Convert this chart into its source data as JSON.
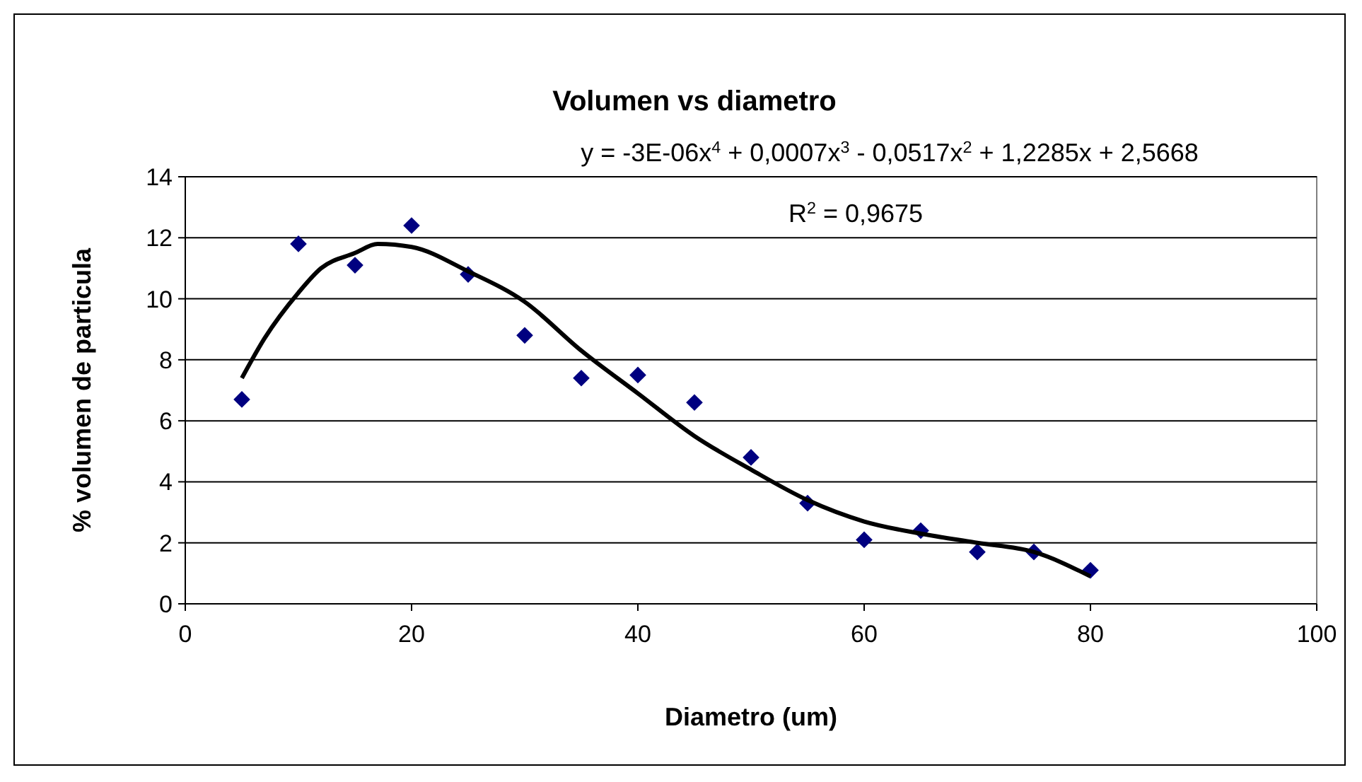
{
  "chart_data": {
    "type": "scatter",
    "title": "Volumen vs diametro",
    "xlabel": "Diametro (um)",
    "ylabel": "% volumen de particula",
    "xlim": [
      0,
      100
    ],
    "xticks": [
      0,
      20,
      40,
      60,
      80,
      100
    ],
    "ylim": [
      0,
      14
    ],
    "yticks": [
      0,
      2,
      4,
      6,
      8,
      10,
      12,
      14
    ],
    "grid": "y",
    "series": [
      {
        "marker": "diamond",
        "color": "#000080",
        "x": [
          5,
          10,
          15,
          20,
          25,
          30,
          35,
          40,
          45,
          50,
          55,
          60,
          65,
          70,
          75,
          80
        ],
        "values": [
          6.7,
          11.8,
          11.1,
          12.4,
          10.8,
          8.8,
          7.4,
          7.5,
          6.6,
          4.8,
          3.3,
          2.1,
          2.4,
          1.7,
          1.7,
          1.1
        ]
      },
      {
        "type": "line",
        "color": "#000000",
        "line_style": "solid",
        "x": [
          5,
          7,
          10,
          12,
          15,
          17,
          20,
          25,
          30,
          35,
          40,
          45,
          50,
          55,
          60,
          65,
          70,
          75,
          80
        ],
        "values": [
          7.4,
          8.7,
          10.2,
          11.0,
          11.5,
          11.8,
          11.7,
          10.9,
          9.9,
          8.3,
          6.9,
          5.5,
          4.4,
          3.4,
          2.7,
          2.3,
          2.0,
          1.7,
          0.9
        ]
      }
    ],
    "annotations": [
      "y = -3E-06x$^{4}$ + 0,0007x$^{3}$ - 0,0517x$^{2}$ + 1,2285x + 2,5668",
      "R$^{2}$ = 0,9675"
    ]
  }
}
